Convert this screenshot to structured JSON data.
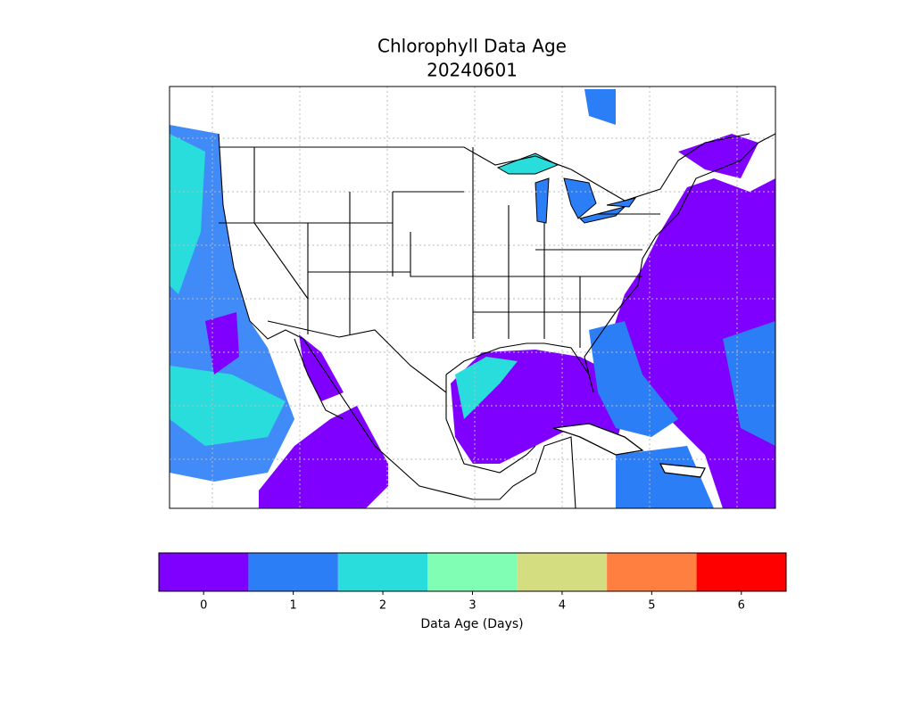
{
  "title": "Chlorophyll Data Age",
  "subtitle": "20240601",
  "colorbar": {
    "label": "Data Age (Days)",
    "ticks": [
      0,
      1,
      2,
      3,
      4,
      5,
      6
    ],
    "colors": [
      "#7f00ff",
      "#2c7ef7",
      "#2adddd",
      "#80ffb4",
      "#d4dd80",
      "#ff7f41",
      "#ff0000"
    ]
  }
}
